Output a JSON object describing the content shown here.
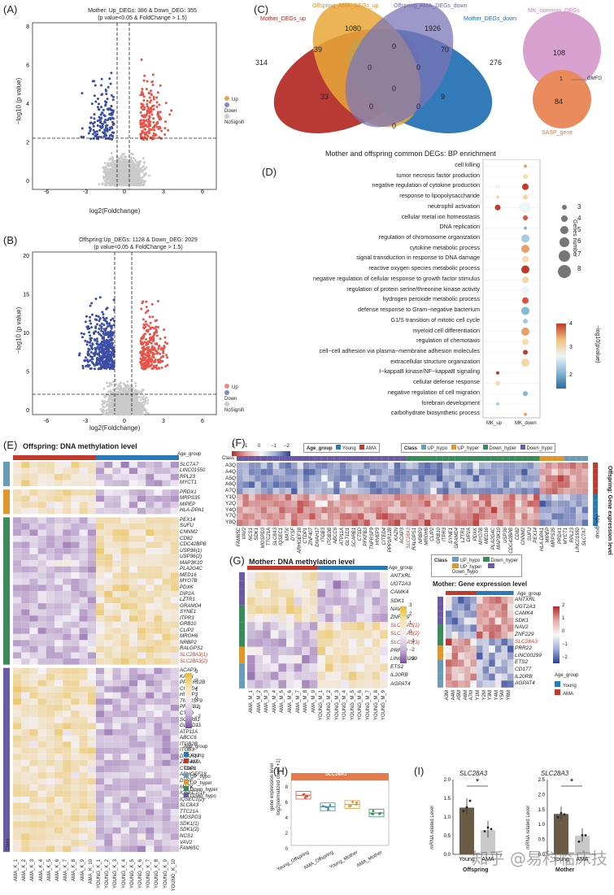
{
  "panels": {
    "A": {
      "letter": "(A)",
      "title1": "Mother:  Up_DEGs: 386 & Down_DEG: 355",
      "title2": "(p value<0.05 & FoldChange > 1.5)",
      "xlabel": "log2(Foldchange)",
      "ylabel": "−log10 (p value)",
      "xticks": [
        "-6",
        "-3",
        "0",
        "3",
        "6"
      ],
      "yticks": [
        "0",
        "2",
        "4",
        "6",
        "8"
      ],
      "legend": [
        "Up",
        "Down",
        "NoSignifi"
      ]
    },
    "B": {
      "letter": "(B)",
      "title1": "Offspring:Up_DEGs: 1128 & Down_DEG: 2029",
      "title2": "(p value<0.05 & FoldChange > 1.5)",
      "xlabel": "log2(Foldchange)",
      "ylabel": "−log10 (p value)",
      "xticks": [
        "-6",
        "-3",
        "0",
        "3",
        "6"
      ],
      "yticks": [
        "0",
        "5",
        "10",
        "15",
        "20"
      ],
      "legend": [
        "Up",
        "Down",
        "NoSignifi"
      ]
    },
    "C": {
      "letter": "(C)",
      "sets": [
        "Mother_DEGs_up",
        "Offspring_AMA_DEGs_up",
        "Offspring_AMA_DEGs_down",
        "Mother_DEGs_down"
      ],
      "numbers": [
        "314",
        "1080",
        "1926",
        "276",
        "39",
        "0",
        "70",
        "0",
        "0",
        "0",
        "33",
        "0",
        "9",
        "0",
        "0"
      ],
      "mk_title": "MK_common_DEGs",
      "mk_top": "108",
      "mk_mid": "1",
      "mk_bottom": "84",
      "mk_gene": "GMFG",
      "mk_bottom_label": "SASP_gene"
    },
    "D": {
      "letter": "(D)",
      "title": "Mother and offspring common DEGs: BP enrichment",
      "terms": [
        "cell killing",
        "tumor necrosis factor production",
        "negative regulation of cytokine production",
        "response to lipopolysaccharide",
        "neutrophil activation",
        "cellular metal ion homeostasis",
        "DNA replication",
        "regulation of chromosome organization",
        "cytokine metabolic process",
        "signal transduction in response to DNA damage",
        "reactive oxygen species metabolic process",
        "negative regulation of cellular response to growth factor stimulus",
        "regulation of protein serine/threonine kinase activity",
        "hydrogen peroxide metabolic process",
        "defense response to Gram−negative bacterium",
        "G1/S transition of mitotic cell cycle",
        "myeloid cell differentiation",
        "regulation of chemotaxis",
        "cell−cell adhesion via plasma−membrane adhesion molecules",
        "extracellular structure organization",
        "I−kappaB kinase/NF−kappaB signaling",
        "cellular defense response",
        "negative regulation of cell migration",
        "forebrain development",
        "carbohydrate biosynthetic process"
      ],
      "xcats": [
        "MK_up",
        "MK_down"
      ],
      "size_title": "Genes number",
      "size_vals": [
        "3",
        "4",
        "5",
        "6",
        "7",
        "8"
      ],
      "color_title": "−log10(pvalue)",
      "color_ticks": [
        "4",
        "3",
        "2"
      ]
    },
    "E": {
      "letter": "(E)",
      "title": "Offspring: DNA methylation level",
      "age_group": "Age_group",
      "genes_hypo": [
        "SLC7A7",
        "LINC01550",
        "RPL23",
        "MYCT1"
      ],
      "genes_hyper": [
        "PRDX1",
        "MRPS35",
        "MIPEP",
        "HLA-DPA1"
      ],
      "genes_downhyper": [
        "PEX14",
        "SUFU",
        "CNNM2",
        "CD82",
        "CDC42BPB",
        "USP36(1)",
        "USP36(2)",
        "MAP3K10",
        "PLA2G4C",
        "MED16",
        "MYO7B",
        "PDXK",
        "DIP2A",
        "LZTR1",
        "GRAMD4",
        "SYNE1",
        "ITPR3",
        "GRB10",
        "CLIP2",
        "MROH6",
        "NRBP2",
        "RALGPS1",
        "SLC28A3(1)",
        "SLC28A3(2)"
      ],
      "genes_downhypo": [
        "ACAP3",
        "KAZN",
        "PPP1R12B",
        "CITED4",
        "HIVEP3",
        "TNFRSF9",
        "PFKFB3",
        "CTSD",
        "SCARB1",
        "GLT1D1",
        "ATP11A",
        "ABCC6",
        "ITGB2B",
        "ITGB3",
        "DNAH17",
        "ZNF407",
        "CTDP1",
        "ARHGEF18",
        "DYSF",
        "MATK",
        "IQSEC1(1)",
        "IQSEC1(2)",
        "SLC8A3",
        "TTC21A",
        "MOSPD3",
        "SDK1(1)",
        "SDK1(2)",
        "NCS1",
        "VAV2",
        "FAM65C"
      ],
      "samples": [
        "AMA_K_1",
        "AMA_K_2",
        "AMA_K_3",
        "AMA_K_4",
        "AMA_K_5",
        "AMA_K_6",
        "AMA_K_7",
        "AMA_K_8",
        "AMA_K_9",
        "AMA_K_10",
        "YOUNG_K_1",
        "YOUNG_K_2",
        "YOUNG_K_3",
        "YOUNG_K_4",
        "YOUNG_K_5",
        "YOUNG_K_6",
        "YOUNG_K_7",
        "YOUNG_K_8",
        "YOUNG_K_9",
        "YOUNG_K_10"
      ],
      "class_label": "Class",
      "scale_ticks": [
        "3",
        "2",
        "1",
        "0",
        "−1",
        "−2",
        "−3"
      ],
      "legend_age_title": "Age_group",
      "legend_age": [
        "Young",
        "AMA"
      ],
      "legend_class_title": "Class",
      "legend_class": [
        "UP_hypo",
        "UP_hyper",
        "Down_hyper",
        "Down_hypo"
      ]
    },
    "F": {
      "letter": "(F)",
      "scale": [
        "2",
        "1",
        "0",
        "−1",
        "−2"
      ],
      "legend_age_title": "Age_group",
      "legend_age": [
        "Young",
        "AMA"
      ],
      "legend_class_title": "Class",
      "legend_class": [
        "UP_hypo",
        "UP_hyper",
        "Down_hyper",
        "Down_hypo"
      ],
      "rows": [
        "A3Q",
        "A4Q",
        "A5Q",
        "A6Q",
        "A7Q",
        "Y1Q",
        "Y2Q",
        "Y4Q",
        "Y7Q",
        "Y8Q"
      ],
      "class_label": "Class",
      "side_title": "Offspring: Gene expression level",
      "age_group": "Age_group",
      "genes": [
        "FAM65C",
        "VAV2",
        "NCS1",
        "SDK1",
        "MOSPD3",
        "TTC21A",
        "SLC8A3",
        "IQSEC1",
        "MATK",
        "DYSF",
        "ARHGEF18",
        "CTDP1",
        "ZNF407",
        "DNAH17",
        "ITGB3",
        "ITGB2B",
        "ABCC6",
        "ATP11A",
        "GLT1D1",
        "SCARB1",
        "CTSD",
        "PFKFB3",
        "TNFRSF9",
        "HIVEP3",
        "CITED4",
        "PPP1R12B",
        "KAZN",
        "ACAP3",
        "SLC28A3",
        "RALGPS1",
        "NRBP2",
        "MROH6",
        "CLIP2",
        "GRB10",
        "ITPR3",
        "SYNE1",
        "GRAMD4",
        "LZTR1",
        "DIP2A",
        "PDXK",
        "MYO7B",
        "MED16",
        "PLA2G4C",
        "MAP3K10",
        "USP36",
        "CDC42BPB",
        "CD82",
        "CNNM2",
        "SUFU",
        "PEX14",
        "HLA-DPA1",
        "MIPEP",
        "MRPS35",
        "PRDX1",
        "MYCT1",
        "RPL23",
        "LINC01550",
        "SLC7A7"
      ]
    },
    "G": {
      "letter": "(G)",
      "title": "Mother: DNA methylation level",
      "age_group": "Age_group",
      "genes": [
        "ANTXRL",
        "UGT2A3",
        "CAMK4",
        "SDK1",
        "NAV2",
        "ZNF229",
        "SLC28A3(1)",
        "SLC28A3(2)",
        "SLC28A3(3)",
        "PRR22",
        "LINC00299",
        "ETS2",
        "IL20RB",
        "AGPAT4"
      ],
      "samples": [
        "AMA_M_1",
        "AMA_M_2",
        "AMA_M_3",
        "AMA_M_4",
        "AMA_M_5",
        "AMA_M_6",
        "AMA_M_7",
        "AMA_M_8",
        "AMA_M_9",
        "YOUNG_M_1",
        "YOUNG_M_2",
        "YOUNG_M_3",
        "YOUNG_M_4",
        "YOUNG_M_5",
        "YOUNG_M_6",
        "YOUNG_M_7",
        "YOUNG_M_8",
        "YOUNG_M_9"
      ],
      "class_legend_title": "Class",
      "class_legend": [
        "UP_hypo",
        "Down_hyper",
        "UP_hyper",
        "Down_hypo"
      ],
      "expr_title": "Mother: Gene expression level",
      "expr_genes": [
        "ANTXRL",
        "UGT2A3",
        "CAMK4",
        "SDK1",
        "NAV2",
        "ZNF229",
        "SLC28A3",
        "PRR22",
        "LINC00299",
        "ETS2",
        "CD177",
        "IL20RB",
        "AGPAT4"
      ],
      "expr_samples": [
        "A3M",
        "A4M",
        "A5M",
        "A6M",
        "A7M",
        "Y1M",
        "Y2M",
        "Y3M",
        "Y4M",
        "Y5M",
        "Y6M"
      ],
      "meth_scale": [
        "3",
        "2",
        "1",
        "0",
        "−1",
        "−2",
        "−3"
      ],
      "expr_scale": [
        "2",
        "1",
        "0",
        "−1",
        "−2"
      ],
      "legend_age_title": "Age_group",
      "legend_age": [
        "Young",
        "AMA"
      ]
    },
    "H": {
      "letter": "(H)",
      "strip": "SLC28A3",
      "ylabel": "gene expression level\nlog2(normalized count +1)",
      "yticks": [
        "8",
        "6",
        "4",
        "2",
        "0"
      ],
      "xcats": [
        "Young_Offspring",
        "AMA_Offspring",
        "Young_Mother",
        "AMA_Mother"
      ],
      "medians": [
        6.5,
        5.0,
        5.3,
        4.2
      ]
    },
    "I": {
      "letter": "(I)",
      "left_title": "SLC28A3",
      "right_title": "SLC28A3",
      "ylabel": "mRNA related Level",
      "left_yticks": [
        "2.0",
        "1.5",
        "1.0",
        "0.5",
        "0.0"
      ],
      "right_yticks": [
        "2.5",
        "2.0",
        "1.5",
        "1.0",
        "0.5",
        "0.0"
      ],
      "xcats": [
        "Young",
        "AMA"
      ],
      "left_group": "Offspring",
      "right_group": "Mother",
      "sig": "*",
      "left_values": [
        1.25,
        0.65
      ],
      "right_values": [
        1.35,
        0.62
      ]
    }
  },
  "watermark": "知乎 @易科临床技"
}
